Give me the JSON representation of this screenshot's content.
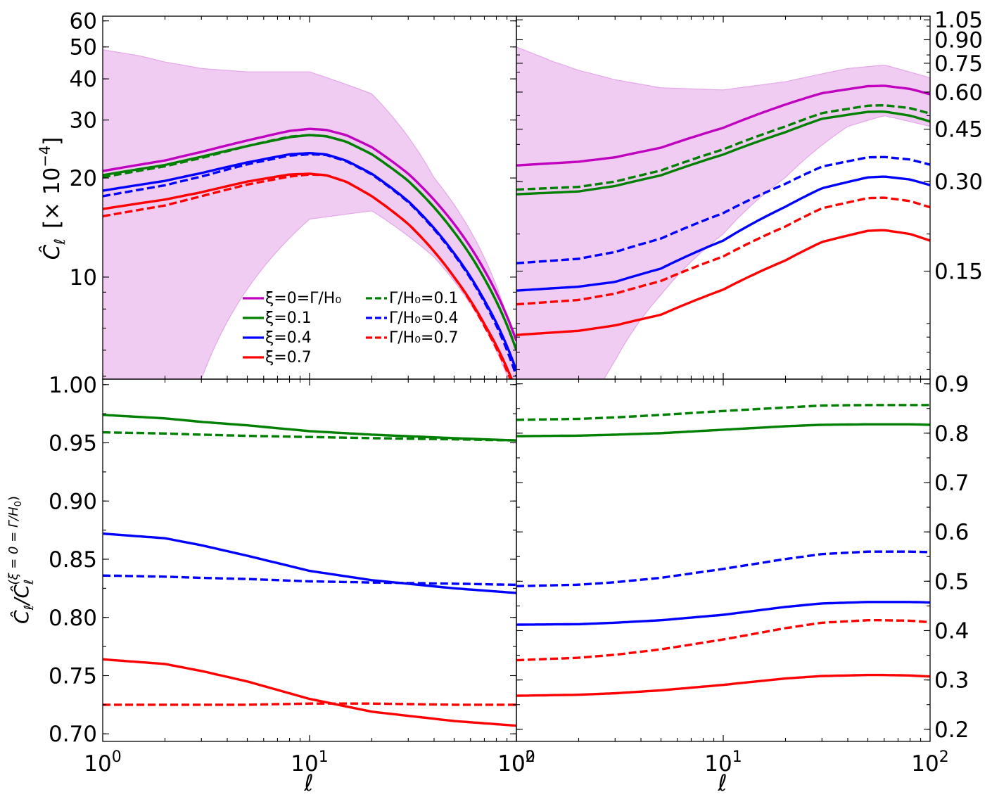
{
  "figure": {
    "top_ylabel": "Ĉ_ℓ  [× 10^−4]",
    "top_ylabel_main": "Ĉ",
    "top_ylabel_sub": "ℓ",
    "top_ylabel_unit": "[× 10",
    "top_ylabel_exp": "−4",
    "top_ylabel_close": "]",
    "bottom_ylabel": "Ĉ_ℓ/Ĉ_ℓ^(ξ=0=Γ/H0)",
    "bottom_ylabel_main": "Ĉ",
    "bottom_ylabel_sub": "ℓ",
    "bottom_ylabel_slash": "/Ĉ",
    "bottom_ylabel_sub2": "ℓ",
    "bottom_ylabel_sup": "(ξ = 0 = Γ/H",
    "bottom_ylabel_sup0": "0",
    "bottom_ylabel_supclose": ")",
    "xlabel": "ℓ",
    "fill_color": "#f0cbf2",
    "fill_edge": "#e4a8e8"
  },
  "legend": {
    "placement": "lower-center (top-left panel)",
    "entries": [
      {
        "key": "xi0",
        "label": "ξ=0=Γ/H₀",
        "color": "#bf00bf",
        "dash": "solid"
      },
      {
        "key": "xi01",
        "label": "ξ=0.1",
        "color": "#008000",
        "dash": "solid"
      },
      {
        "key": "xi04",
        "label": "ξ=0.4",
        "color": "#0000ff",
        "dash": "solid"
      },
      {
        "key": "xi07",
        "label": "ξ=0.7",
        "color": "#ff0000",
        "dash": "solid"
      },
      {
        "key": "g01",
        "label": "Γ/H₀=0.1",
        "color": "#008000",
        "dash": "dashed"
      },
      {
        "key": "g04",
        "label": "Γ/H₀=0.4",
        "color": "#0000ff",
        "dash": "dashed"
      },
      {
        "key": "g07",
        "label": "Γ/H₀=0.7",
        "color": "#ff0000",
        "dash": "dashed"
      }
    ]
  },
  "chart_data": [
    {
      "id": "top_left",
      "type": "line",
      "xscale": "log",
      "yscale": "log",
      "xlim": [
        1,
        100
      ],
      "ylim": [
        4.9,
        62
      ],
      "yticks": [
        10,
        20,
        30,
        40,
        50,
        60
      ],
      "yticklabels": [
        "10",
        "20",
        "30",
        "40",
        "50",
        "60"
      ],
      "xticks": [],
      "band": {
        "x": [
          1,
          1.5,
          2,
          3,
          5,
          10,
          20,
          40,
          100
        ],
        "upper": [
          49,
          47,
          45,
          43,
          42,
          42,
          36,
          20,
          6
        ],
        "lower": [
          2.3,
          2.6,
          3.0,
          4.9,
          9.2,
          15.0,
          15.9,
          11.5,
          4.2
        ]
      },
      "series": [
        {
          "key": "xi0",
          "x": [
            1,
            2,
            3,
            5,
            8,
            10,
            12,
            15,
            20,
            30,
            50,
            70,
            100
          ],
          "y": [
            21.0,
            22.6,
            24.0,
            26.0,
            27.8,
            28.2,
            28.0,
            27.0,
            24.8,
            20.6,
            14.5,
            10.5,
            6.4
          ]
        },
        {
          "key": "xi01",
          "x": [
            1,
            2,
            3,
            5,
            8,
            10,
            12,
            15,
            20,
            30,
            50,
            70,
            100
          ],
          "y": [
            20.4,
            21.9,
            23.2,
            25.0,
            26.6,
            27.0,
            26.8,
            25.8,
            23.6,
            19.6,
            13.7,
            9.9,
            6.0
          ]
        },
        {
          "key": "xi04",
          "x": [
            1,
            2,
            3,
            5,
            8,
            10,
            12,
            15,
            20,
            30,
            50,
            70,
            100
          ],
          "y": [
            18.3,
            19.6,
            20.7,
            22.3,
            23.6,
            23.8,
            23.6,
            22.6,
            20.6,
            17.0,
            11.8,
            8.5,
            5.2
          ]
        },
        {
          "key": "xi07",
          "x": [
            1,
            2,
            3,
            5,
            8,
            10,
            12,
            15,
            20,
            30,
            50,
            70,
            100
          ],
          "y": [
            16.1,
            17.2,
            18.1,
            19.5,
            20.5,
            20.6,
            20.4,
            19.5,
            17.6,
            14.5,
            10.0,
            7.2,
            4.5
          ]
        },
        {
          "key": "g01",
          "x": [
            1,
            2,
            3,
            5,
            8,
            10,
            12,
            15,
            20,
            30,
            50,
            70,
            100
          ],
          "y": [
            20.1,
            21.7,
            23.0,
            25.0,
            26.7,
            27.0,
            26.8,
            25.8,
            23.6,
            19.6,
            13.7,
            9.9,
            6.0
          ]
        },
        {
          "key": "g04",
          "x": [
            1,
            2,
            3,
            5,
            8,
            10,
            12,
            15,
            20,
            30,
            50,
            70,
            100
          ],
          "y": [
            17.6,
            19.0,
            20.2,
            22.0,
            23.4,
            23.6,
            23.5,
            22.5,
            20.5,
            16.9,
            11.7,
            8.4,
            5.0
          ]
        },
        {
          "key": "g07",
          "x": [
            1,
            2,
            3,
            5,
            8,
            10,
            12,
            15,
            20,
            30,
            50,
            70,
            100
          ],
          "y": [
            15.3,
            16.5,
            17.6,
            19.1,
            20.2,
            20.5,
            20.4,
            19.5,
            17.6,
            14.5,
            10.0,
            7.1,
            4.4
          ]
        }
      ]
    },
    {
      "id": "top_right",
      "type": "line",
      "xscale": "log",
      "yscale": "log",
      "xlim": [
        1,
        100
      ],
      "ylim": [
        0.065,
        1.08
      ],
      "yticks": [
        0.15,
        0.3,
        0.45,
        0.6,
        0.75,
        0.9,
        1.05
      ],
      "yticklabels": [
        "0.15",
        "0.30",
        "0.45",
        "0.60",
        "0.75",
        "0.90",
        "1.05"
      ],
      "xticks": [],
      "band": {
        "x": [
          1,
          1.5,
          2,
          3,
          5,
          10,
          20,
          40,
          60,
          100
        ],
        "upper": [
          0.85,
          0.76,
          0.71,
          0.66,
          0.62,
          0.61,
          0.65,
          0.72,
          0.74,
          0.67
        ],
        "lower": [
          0.024,
          0.03,
          0.042,
          0.075,
          0.125,
          0.2,
          0.31,
          0.46,
          0.5,
          0.46
        ]
      },
      "series": [
        {
          "key": "xi0",
          "x": [
            1,
            2,
            3,
            5,
            10,
            20,
            30,
            50,
            60,
            80,
            100
          ],
          "y": [
            0.34,
            0.35,
            0.362,
            0.39,
            0.455,
            0.545,
            0.595,
            0.628,
            0.63,
            0.615,
            0.59
          ]
        },
        {
          "key": "xi01",
          "x": [
            1,
            2,
            3,
            5,
            10,
            20,
            30,
            50,
            60,
            80,
            100
          ],
          "y": [
            0.272,
            0.278,
            0.29,
            0.315,
            0.37,
            0.44,
            0.488,
            0.515,
            0.516,
            0.5,
            0.478
          ]
        },
        {
          "key": "xi04",
          "x": [
            1,
            2,
            3,
            5,
            10,
            20,
            30,
            50,
            60,
            80,
            100
          ],
          "y": [
            0.129,
            0.133,
            0.138,
            0.153,
            0.19,
            0.247,
            0.285,
            0.31,
            0.312,
            0.305,
            0.292
          ]
        },
        {
          "key": "xi07",
          "x": [
            1,
            2,
            3,
            5,
            10,
            20,
            30,
            50,
            60,
            80,
            100
          ],
          "y": [
            0.0915,
            0.0945,
            0.0985,
            0.107,
            0.13,
            0.163,
            0.188,
            0.205,
            0.206,
            0.2,
            0.19
          ]
        },
        {
          "key": "g01",
          "x": [
            1,
            2,
            3,
            5,
            10,
            20,
            30,
            50,
            60,
            80,
            100
          ],
          "y": [
            0.282,
            0.288,
            0.3,
            0.327,
            0.385,
            0.46,
            0.51,
            0.54,
            0.542,
            0.53,
            0.508
          ]
        },
        {
          "key": "g04",
          "x": [
            1,
            2,
            3,
            5,
            10,
            20,
            30,
            50,
            60,
            80,
            100
          ],
          "y": [
            0.1595,
            0.165,
            0.174,
            0.193,
            0.235,
            0.295,
            0.337,
            0.362,
            0.363,
            0.356,
            0.342
          ]
        },
        {
          "key": "g07",
          "x": [
            1,
            2,
            3,
            5,
            10,
            20,
            30,
            50,
            60,
            80,
            100
          ],
          "y": [
            0.116,
            0.12,
            0.126,
            0.139,
            0.168,
            0.212,
            0.244,
            0.264,
            0.265,
            0.258,
            0.246
          ]
        }
      ]
    },
    {
      "id": "bottom_left",
      "type": "line",
      "xscale": "log",
      "yscale": "linear",
      "xlim": [
        1,
        100
      ],
      "ylim": [
        0.6935,
        1.0047
      ],
      "yticks": [
        0.7,
        0.75,
        0.8,
        0.85,
        0.9,
        0.95,
        1.0
      ],
      "yticklabels": [
        "0.70",
        "0.75",
        "0.80",
        "0.85",
        "0.90",
        "0.95",
        "1.00"
      ],
      "xticks": [
        1,
        10,
        100
      ],
      "xticklabels": [
        {
          "base": "10",
          "exp": "0"
        },
        {
          "base": "10",
          "exp": "1"
        },
        {
          "base": "10",
          "exp": "2"
        }
      ],
      "series": [
        {
          "key": "xi01",
          "x": [
            1,
            2,
            3,
            5,
            10,
            20,
            50,
            100
          ],
          "y": [
            0.974,
            0.971,
            0.968,
            0.965,
            0.96,
            0.957,
            0.954,
            0.952
          ]
        },
        {
          "key": "g01",
          "x": [
            1,
            2,
            3,
            5,
            10,
            20,
            50,
            100
          ],
          "y": [
            0.959,
            0.958,
            0.957,
            0.956,
            0.955,
            0.954,
            0.953,
            0.952
          ]
        },
        {
          "key": "xi04",
          "x": [
            1,
            2,
            3,
            5,
            10,
            20,
            50,
            100
          ],
          "y": [
            0.872,
            0.868,
            0.862,
            0.853,
            0.84,
            0.832,
            0.825,
            0.821
          ]
        },
        {
          "key": "g04",
          "x": [
            1,
            2,
            3,
            5,
            10,
            20,
            50,
            100
          ],
          "y": [
            0.836,
            0.835,
            0.834,
            0.833,
            0.831,
            0.83,
            0.829,
            0.828
          ]
        },
        {
          "key": "xi07",
          "x": [
            1,
            2,
            3,
            5,
            10,
            20,
            50,
            100
          ],
          "y": [
            0.764,
            0.76,
            0.754,
            0.745,
            0.73,
            0.719,
            0.711,
            0.707
          ]
        },
        {
          "key": "g07",
          "x": [
            1,
            2,
            3,
            5,
            10,
            20,
            50,
            100
          ],
          "y": [
            0.725,
            0.725,
            0.725,
            0.725,
            0.726,
            0.726,
            0.725,
            0.725
          ]
        }
      ]
    },
    {
      "id": "bottom_right",
      "type": "line",
      "xscale": "log",
      "yscale": "linear",
      "xlim": [
        1,
        100
      ],
      "ylim": [
        0.1755,
        0.9095
      ],
      "yticks": [
        0.2,
        0.3,
        0.4,
        0.5,
        0.6,
        0.7,
        0.8,
        0.9
      ],
      "yticklabels": [
        "0.2",
        "0.3",
        "0.4",
        "0.5",
        "0.6",
        "0.7",
        "0.8",
        "0.9"
      ],
      "xticks": [
        1,
        10,
        100
      ],
      "xticklabels": [
        {
          "base": "10",
          "exp": "0"
        },
        {
          "base": "10",
          "exp": "1"
        },
        {
          "base": "10",
          "exp": "2"
        }
      ],
      "series": [
        {
          "key": "g01",
          "x": [
            1,
            2,
            3,
            5,
            10,
            20,
            30,
            50,
            60,
            80,
            100
          ],
          "y": [
            0.827,
            0.829,
            0.832,
            0.837,
            0.845,
            0.852,
            0.856,
            0.857,
            0.857,
            0.857,
            0.857
          ]
        },
        {
          "key": "xi01",
          "x": [
            1,
            2,
            3,
            5,
            10,
            20,
            30,
            50,
            60,
            80,
            100
          ],
          "y": [
            0.794,
            0.795,
            0.797,
            0.8,
            0.807,
            0.814,
            0.817,
            0.818,
            0.818,
            0.818,
            0.817
          ]
        },
        {
          "key": "g04",
          "x": [
            1,
            2,
            3,
            5,
            10,
            20,
            30,
            50,
            60,
            80,
            100
          ],
          "y": [
            0.49,
            0.493,
            0.498,
            0.507,
            0.525,
            0.545,
            0.555,
            0.56,
            0.56,
            0.56,
            0.559
          ]
        },
        {
          "key": "xi04",
          "x": [
            1,
            2,
            3,
            5,
            10,
            20,
            30,
            50,
            60,
            80,
            100
          ],
          "y": [
            0.412,
            0.413,
            0.416,
            0.421,
            0.432,
            0.448,
            0.455,
            0.458,
            0.458,
            0.458,
            0.457
          ]
        },
        {
          "key": "xi07",
          "x": [
            1,
            2,
            3,
            5,
            10,
            20,
            30,
            50,
            60,
            80,
            100
          ],
          "y": [
            0.268,
            0.27,
            0.273,
            0.279,
            0.29,
            0.303,
            0.308,
            0.31,
            0.31,
            0.309,
            0.307
          ]
        },
        {
          "key": "g07",
          "x": [
            1,
            2,
            3,
            5,
            10,
            20,
            30,
            50,
            60,
            80,
            100
          ],
          "y": [
            0.34,
            0.345,
            0.351,
            0.362,
            0.382,
            0.405,
            0.416,
            0.421,
            0.421,
            0.42,
            0.417
          ]
        }
      ]
    }
  ]
}
